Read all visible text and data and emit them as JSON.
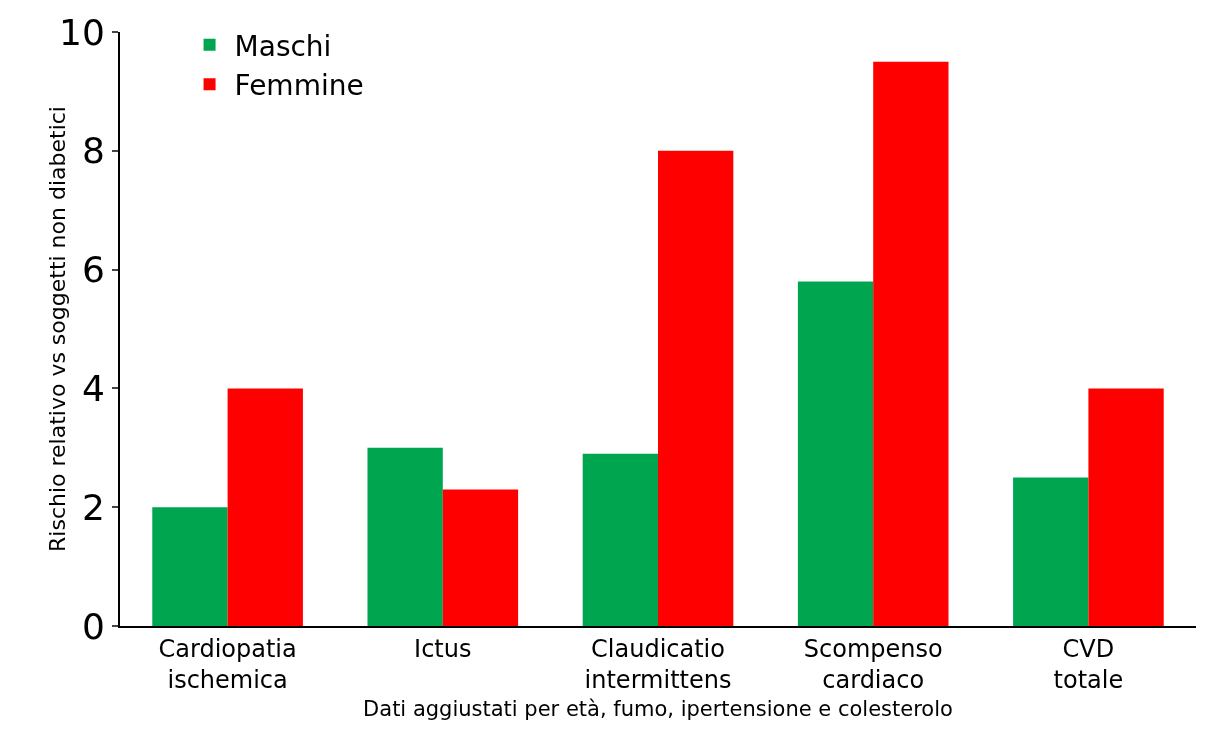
{
  "chart_data": {
    "type": "bar",
    "ylabel": "Rischio relativo vs soggetti non diabetici",
    "xlabel": "Dati aggiustati per età, fumo, ipertensione e colesterolo",
    "categories": [
      "Cardiopatia\nischemica",
      "Ictus",
      "Claudicatio\nintermittens",
      "Scompenso\ncardiaco",
      "CVD\ntotale"
    ],
    "series": [
      {
        "name": "Maschi",
        "color": "#00a550",
        "values": [
          2.0,
          3.0,
          2.9,
          5.8,
          2.5
        ]
      },
      {
        "name": "Femmine",
        "color": "#ff0000",
        "values": [
          4.0,
          2.3,
          8.0,
          9.5,
          4.0
        ]
      }
    ],
    "ylim": [
      0,
      10
    ],
    "yticks": [
      0,
      2,
      4,
      6,
      8,
      10
    ],
    "grid": false,
    "legend": "top left"
  }
}
